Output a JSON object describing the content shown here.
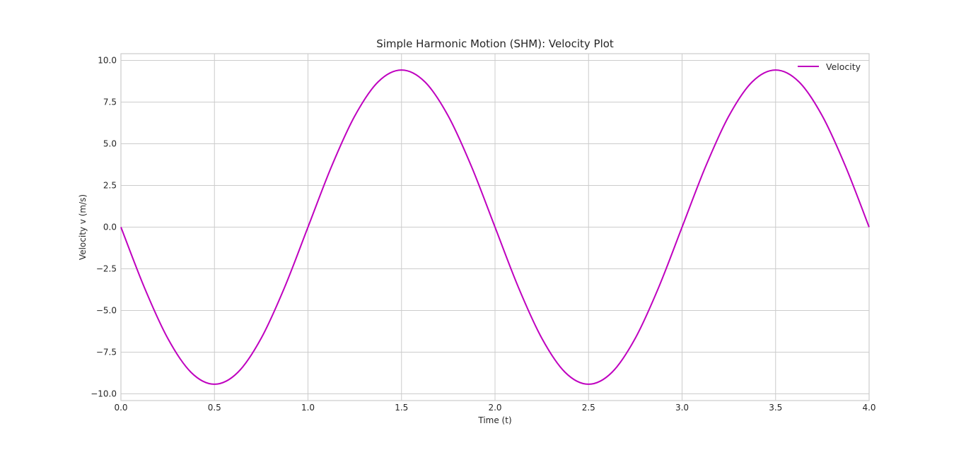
{
  "chart_data": {
    "type": "line",
    "title": "Simple Harmonic Motion (SHM): Velocity Plot",
    "xlabel": "Time (t)",
    "ylabel": "Velocity v (m/s)",
    "xlim": [
      0,
      4
    ],
    "ylim": [
      -10.4,
      10.4
    ],
    "xticks": [
      0.0,
      0.5,
      1.0,
      1.5,
      2.0,
      2.5,
      3.0,
      3.5,
      4.0
    ],
    "xtick_labels": [
      "0.0",
      "0.5",
      "1.0",
      "1.5",
      "2.0",
      "2.5",
      "3.0",
      "3.5",
      "4.0"
    ],
    "yticks": [
      10.0,
      7.5,
      5.0,
      2.5,
      0.0,
      -2.5,
      -5.0,
      -7.5,
      -10.0
    ],
    "ytick_labels": [
      "10.0",
      "7.5",
      "5.0",
      "2.5",
      "0.0",
      "−2.5",
      "−5.0",
      "−7.5",
      "−10.0"
    ],
    "grid": true,
    "legend_position": "top-right",
    "series": [
      {
        "name": "Velocity",
        "color": "#bf00bf",
        "x": [
          0.0,
          0.125,
          0.25,
          0.375,
          0.5,
          0.625,
          0.75,
          0.875,
          1.0,
          1.125,
          1.25,
          1.375,
          1.5,
          1.625,
          1.75,
          1.875,
          2.0,
          2.125,
          2.25,
          2.375,
          2.5,
          2.625,
          2.75,
          2.875,
          3.0,
          3.125,
          3.25,
          3.375,
          3.5,
          3.625,
          3.75,
          3.875,
          4.0
        ],
        "y": [
          0.0,
          -3.61,
          -6.66,
          -8.71,
          -9.42,
          -8.71,
          -6.66,
          -3.61,
          0.0,
          3.61,
          6.66,
          8.71,
          9.42,
          8.71,
          6.66,
          3.61,
          0.0,
          -3.61,
          -6.66,
          -8.71,
          -9.42,
          -8.71,
          -6.66,
          -3.61,
          0.0,
          3.61,
          6.66,
          8.71,
          9.42,
          8.71,
          6.66,
          3.61,
          0.0
        ]
      }
    ]
  }
}
